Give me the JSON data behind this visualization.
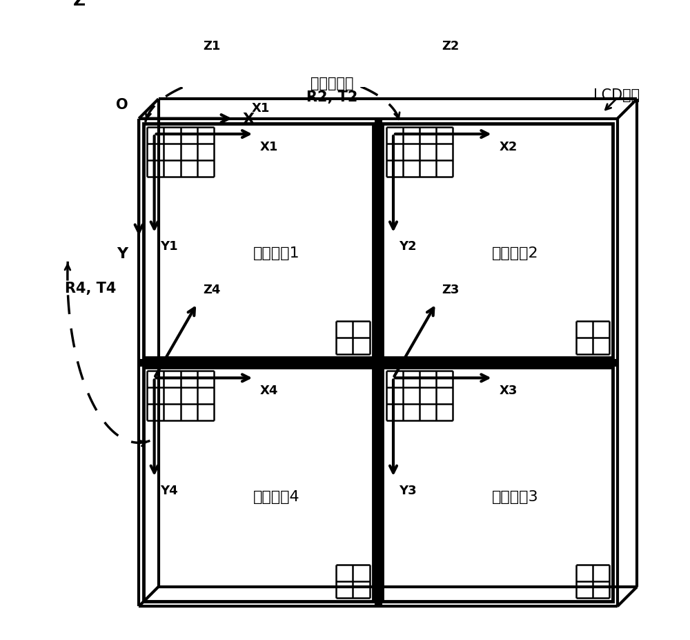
{
  "bg_color": "#ffffff",
  "annotation_top": "旋转和平移",
  "annotation_r2t2": "R2, T2",
  "annotation_r4t4": "R4, T4",
  "annotation_lcd": "LCD面板",
  "label_O": "O",
  "label_X": "X",
  "label_Y": "Y",
  "label_Z": "Z",
  "label_X1": "X1",
  "label_Y1": "Y1",
  "label_Z1": "Z1",
  "label_X2": "X2",
  "label_Y2": "Y2",
  "label_Z2": "Z2",
  "label_X3": "X3",
  "label_Y3": "Y3",
  "label_Z3": "Z3",
  "label_X4": "X4",
  "label_Y4": "Y4",
  "label_Z4": "Z4",
  "label_array1": "透镜阵共1",
  "label_array2": "透镜阵共2",
  "label_array3": "透镜阵共3",
  "label_array4": "透镜阵共4"
}
